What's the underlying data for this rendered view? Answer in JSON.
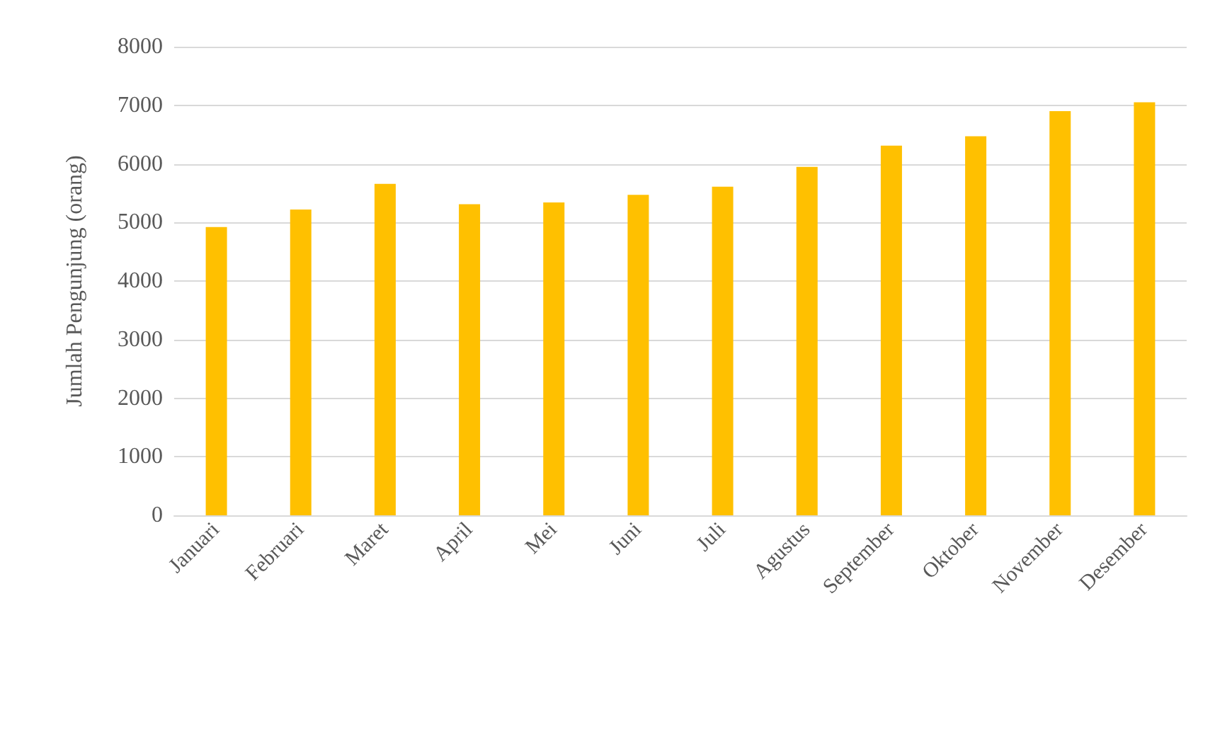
{
  "chart_data": {
    "type": "bar",
    "ylabel": "Jumlah Pengunjung (orang)",
    "categories": [
      "Januari",
      "Februari",
      "Maret",
      "April",
      "Mei",
      "Juni",
      "Juli",
      "Agustus",
      "September",
      "Oktober",
      "November",
      "Desember"
    ],
    "series": [
      {
        "color": "#ffc000",
        "values": [
          4920,
          5220,
          5660,
          5310,
          5340,
          5470,
          5610,
          5950,
          6310,
          6470,
          6900,
          7050
        ]
      }
    ],
    "ylim": [
      0,
      8000
    ],
    "yticks": [
      0,
      1000,
      2000,
      3000,
      4000,
      5000,
      6000,
      7000,
      8000
    ],
    "grid": "y"
  }
}
